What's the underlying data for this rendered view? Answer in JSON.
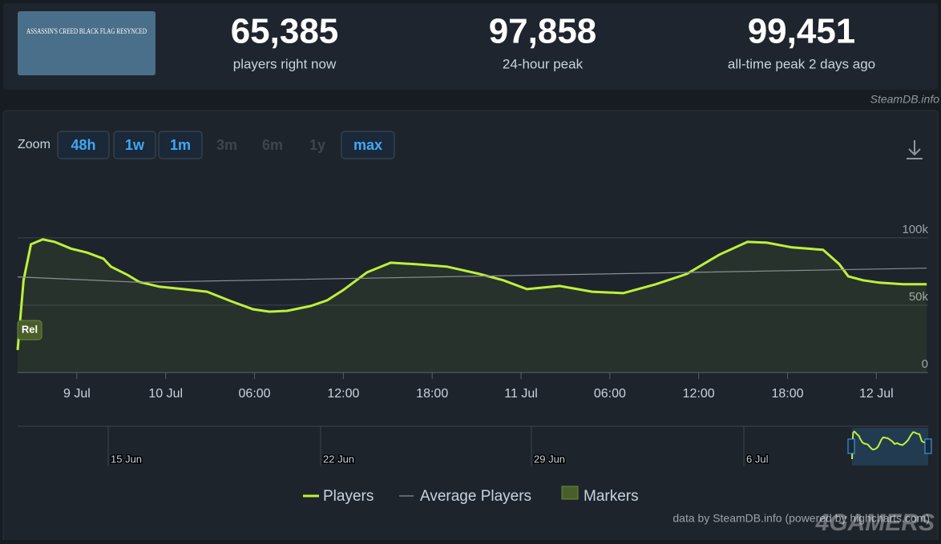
{
  "header": {
    "image_text": "ASSASSIN'S CREED BLACK FLAG RESYNCED",
    "stats": [
      {
        "value": "65,385",
        "label": "players right now"
      },
      {
        "value": "97,858",
        "label": "24-hour peak"
      },
      {
        "value": "99,451",
        "label": "all-time peak 2 days ago"
      }
    ],
    "source": "SteamDB.info"
  },
  "zoom": {
    "label": "Zoom",
    "buttons": [
      {
        "text": "48h",
        "enabled": true
      },
      {
        "text": "1w",
        "enabled": true
      },
      {
        "text": "1m",
        "enabled": true
      },
      {
        "text": "3m",
        "enabled": false
      },
      {
        "text": "6m",
        "enabled": false
      },
      {
        "text": "1y",
        "enabled": false
      },
      {
        "text": "max",
        "enabled": true
      }
    ]
  },
  "chart_data": {
    "type": "line",
    "x": [
      -10,
      -9.6,
      -9.1,
      -8.3,
      -7.5,
      -6.4,
      -5.3,
      -4.2,
      -3.7,
      -2.6,
      -1.8,
      -0.4,
      1.2,
      2.8,
      4.4,
      5.9,
      7.0,
      8.2,
      9.8,
      10.9,
      12.0,
      13.6,
      15.2,
      16.9,
      19.0,
      21.2,
      22.8,
      24.4,
      26.6,
      28.8,
      30.9,
      33.1,
      35.2,
      37.4,
      39.3,
      40.6,
      42.3,
      44.4,
      45.5,
      46.1,
      47.1,
      48.2,
      49.8,
      51.4
    ],
    "series": [
      {
        "name": "Players",
        "color": "#bef03c",
        "values": [
          16700,
          68500,
          95200,
          98800,
          97000,
          92000,
          89000,
          84500,
          78600,
          72600,
          67300,
          63700,
          61900,
          60000,
          53000,
          47000,
          45200,
          45800,
          49400,
          53600,
          61300,
          74400,
          81500,
          80400,
          78600,
          73200,
          68500,
          61900,
          64300,
          60000,
          58900,
          65500,
          73200,
          87500,
          97000,
          96400,
          92900,
          91100,
          80400,
          71400,
          68500,
          66700,
          65500,
          65500
        ]
      },
      {
        "name": "Average Players",
        "color": "#8a8f96",
        "x": [
          -10,
          -1.8,
          51.4
        ],
        "values": [
          71000,
          67000,
          77500
        ]
      }
    ],
    "markers": {
      "name": "Markers",
      "labels": [
        {
          "x": -10,
          "text": "Rel"
        }
      ]
    },
    "xlim": [
      -10,
      51.5
    ],
    "xticks": [
      {
        "value": -6,
        "label": "9 Jul"
      },
      {
        "value": 0,
        "label": "10 Jul"
      },
      {
        "value": 6,
        "label": "06:00"
      },
      {
        "value": 12,
        "label": "12:00"
      },
      {
        "value": 18,
        "label": "18:00"
      },
      {
        "value": 24,
        "label": "11 Jul"
      },
      {
        "value": 30,
        "label": "06:00"
      },
      {
        "value": 36,
        "label": "12:00"
      },
      {
        "value": 42,
        "label": "18:00"
      },
      {
        "value": 48,
        "label": "12 Jul"
      }
    ],
    "ylim": [
      0,
      110000
    ],
    "yticks": [
      {
        "value": 0,
        "label": "0"
      },
      {
        "value": 50000,
        "label": "50k"
      },
      {
        "value": 100000,
        "label": "100k"
      }
    ],
    "grid": true,
    "navigator_labels": [
      "15 Jun",
      "22 Jun",
      "29 Jun",
      "6 Jul"
    ],
    "credits": "data by SteamDB.info (powered by highcharts.com)"
  },
  "watermark": "4GAMERS"
}
